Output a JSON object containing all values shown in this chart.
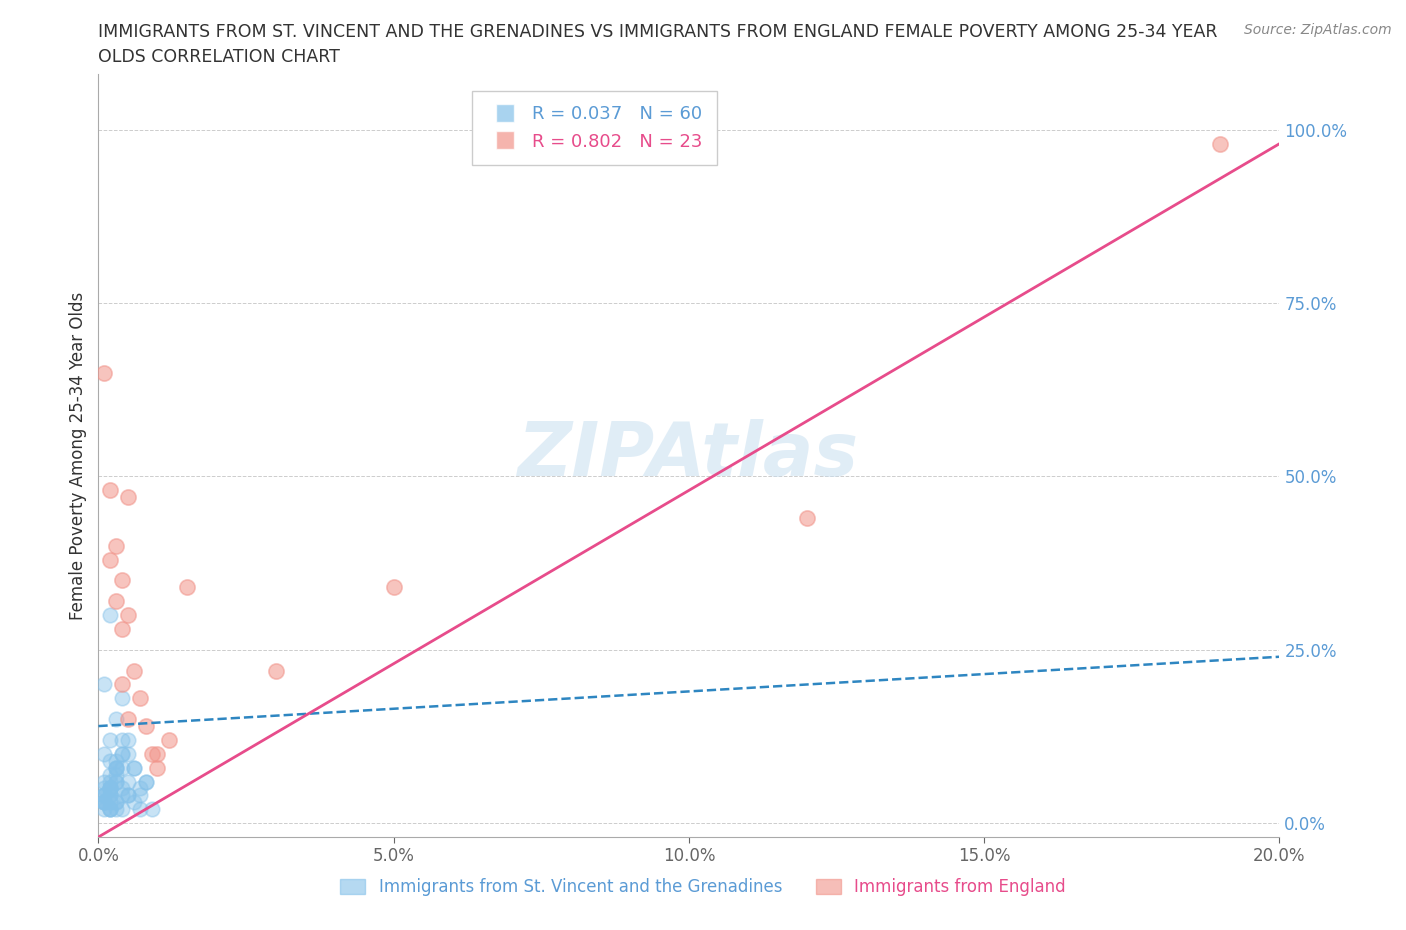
{
  "title_line1": "IMMIGRANTS FROM ST. VINCENT AND THE GRENADINES VS IMMIGRANTS FROM ENGLAND FEMALE POVERTY AMONG 25-34 YEAR",
  "title_line2": "OLDS CORRELATION CHART",
  "source": "Source: ZipAtlas.com",
  "ylabel": "Female Poverty Among 25-34 Year Olds",
  "xlim": [
    0.0,
    0.2
  ],
  "ylim": [
    -0.02,
    1.08
  ],
  "yticks": [
    0.0,
    0.25,
    0.5,
    0.75,
    1.0
  ],
  "ytick_labels": [
    "0.0%",
    "25.0%",
    "50.0%",
    "75.0%",
    "100.0%"
  ],
  "xticks": [
    0.0,
    0.05,
    0.1,
    0.15,
    0.2
  ],
  "xtick_labels": [
    "0.0%",
    "5.0%",
    "10.0%",
    "15.0%",
    "20.0%"
  ],
  "blue_R": 0.037,
  "blue_N": 60,
  "pink_R": 0.802,
  "pink_N": 23,
  "blue_label": "Immigrants from St. Vincent and the Grenadines",
  "pink_label": "Immigrants from England",
  "blue_color": "#85c1e9",
  "pink_color": "#f1948a",
  "blue_line_color": "#2e86c1",
  "pink_line_color": "#e74c8b",
  "axis_color": "#5b9bd5",
  "title_color": "#333333",
  "blue_x": [
    0.001,
    0.002,
    0.001,
    0.003,
    0.002,
    0.004,
    0.001,
    0.003,
    0.005,
    0.006,
    0.002,
    0.003,
    0.001,
    0.002,
    0.004,
    0.003,
    0.002,
    0.001,
    0.002,
    0.003,
    0.004,
    0.005,
    0.006,
    0.007,
    0.008,
    0.003,
    0.004,
    0.002,
    0.001,
    0.002,
    0.003,
    0.004,
    0.001,
    0.002,
    0.005,
    0.003,
    0.002,
    0.001,
    0.001,
    0.002,
    0.003,
    0.004,
    0.001,
    0.002,
    0.005,
    0.006,
    0.007,
    0.008,
    0.004,
    0.003,
    0.002,
    0.001,
    0.001,
    0.002,
    0.003,
    0.005,
    0.007,
    0.009,
    0.004,
    0.002
  ],
  "blue_y": [
    0.2,
    0.3,
    0.1,
    0.15,
    0.12,
    0.18,
    0.05,
    0.08,
    0.12,
    0.08,
    0.04,
    0.06,
    0.03,
    0.05,
    0.1,
    0.08,
    0.06,
    0.04,
    0.07,
    0.09,
    0.12,
    0.1,
    0.08,
    0.04,
    0.06,
    0.03,
    0.05,
    0.02,
    0.03,
    0.04,
    0.06,
    0.08,
    0.03,
    0.05,
    0.06,
    0.07,
    0.02,
    0.02,
    0.04,
    0.05,
    0.08,
    0.1,
    0.06,
    0.09,
    0.04,
    0.03,
    0.05,
    0.06,
    0.02,
    0.02,
    0.03,
    0.04,
    0.03,
    0.02,
    0.03,
    0.04,
    0.02,
    0.02,
    0.04,
    0.05
  ],
  "pink_x": [
    0.001,
    0.002,
    0.002,
    0.003,
    0.003,
    0.004,
    0.004,
    0.004,
    0.005,
    0.005,
    0.005,
    0.006,
    0.007,
    0.008,
    0.009,
    0.01,
    0.01,
    0.012,
    0.015,
    0.03,
    0.05,
    0.12,
    0.19
  ],
  "pink_y": [
    0.65,
    0.48,
    0.38,
    0.4,
    0.32,
    0.28,
    0.35,
    0.2,
    0.47,
    0.3,
    0.15,
    0.22,
    0.18,
    0.14,
    0.1,
    0.1,
    0.08,
    0.12,
    0.34,
    0.22,
    0.34,
    0.44,
    0.98
  ]
}
